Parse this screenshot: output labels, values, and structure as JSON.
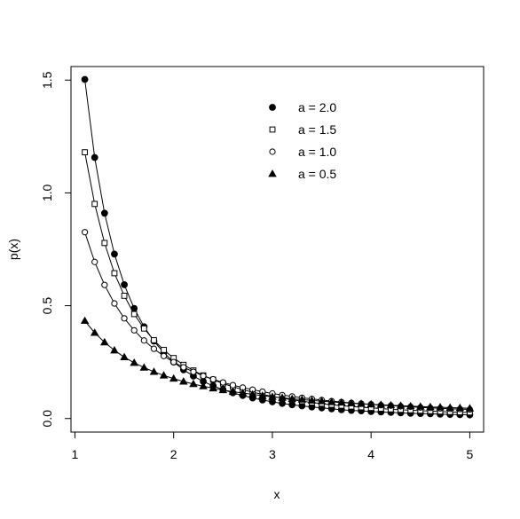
{
  "chart_data": {
    "type": "scatter",
    "xlabel": "x",
    "ylabel": "p(x)",
    "xlim": [
      0.96,
      5.14
    ],
    "ylim": [
      -0.06,
      1.56
    ],
    "x_ticks": [
      1,
      2,
      3,
      4,
      5
    ],
    "y_ticks": [
      0.0,
      0.5,
      1.0,
      1.5
    ],
    "x_tick_labels": [
      "1",
      "2",
      "3",
      "4",
      "5"
    ],
    "y_tick_labels": [
      "0.0",
      "0.5",
      "1.0",
      "1.5"
    ],
    "grid": false,
    "legend_position": "top-right",
    "x": [
      1.1,
      1.2,
      1.3,
      1.4,
      1.5,
      1.6,
      1.7,
      1.8,
      1.9,
      2.0,
      2.1,
      2.2,
      2.3,
      2.4,
      2.5,
      2.6,
      2.7,
      2.8,
      2.9,
      3.0,
      3.1,
      3.2,
      3.3,
      3.4,
      3.5,
      3.6,
      3.7,
      3.8,
      3.9,
      4.0,
      4.1,
      4.2,
      4.3,
      4.4,
      4.5,
      4.6,
      4.7,
      4.8,
      4.9,
      5.0
    ],
    "series": [
      {
        "name": "a = 2.0",
        "marker": "filled-circle",
        "values": [
          1.503,
          1.157,
          0.91,
          0.729,
          0.593,
          0.488,
          0.407,
          0.343,
          0.292,
          0.25,
          0.216,
          0.188,
          0.164,
          0.145,
          0.128,
          0.114,
          0.102,
          0.091,
          0.082,
          0.074,
          0.067,
          0.061,
          0.056,
          0.051,
          0.047,
          0.043,
          0.039,
          0.036,
          0.034,
          0.031,
          0.029,
          0.027,
          0.025,
          0.023,
          0.022,
          0.021,
          0.019,
          0.018,
          0.017,
          0.016
        ]
      },
      {
        "name": "a = 1.5",
        "marker": "open-square",
        "values": [
          1.18,
          0.951,
          0.778,
          0.644,
          0.544,
          0.463,
          0.399,
          0.347,
          0.304,
          0.268,
          0.238,
          0.213,
          0.191,
          0.172,
          0.155,
          0.141,
          0.128,
          0.117,
          0.107,
          0.098,
          0.09,
          0.083,
          0.077,
          0.071,
          0.066,
          0.061,
          0.057,
          0.053,
          0.05,
          0.047,
          0.044,
          0.041,
          0.039,
          0.037,
          0.035,
          0.033,
          0.031,
          0.029,
          0.028,
          0.027
        ]
      },
      {
        "name": "a = 1.0",
        "marker": "open-circle",
        "values": [
          0.826,
          0.694,
          0.592,
          0.51,
          0.444,
          0.391,
          0.346,
          0.309,
          0.277,
          0.25,
          0.227,
          0.207,
          0.189,
          0.174,
          0.16,
          0.148,
          0.137,
          0.128,
          0.119,
          0.111,
          0.104,
          0.098,
          0.092,
          0.087,
          0.082,
          0.077,
          0.073,
          0.069,
          0.066,
          0.063,
          0.059,
          0.057,
          0.054,
          0.052,
          0.049,
          0.047,
          0.045,
          0.043,
          0.042,
          0.04
        ]
      },
      {
        "name": "a = 0.5",
        "marker": "filled-triangle",
        "values": [
          0.433,
          0.38,
          0.338,
          0.302,
          0.272,
          0.247,
          0.226,
          0.207,
          0.191,
          0.177,
          0.164,
          0.153,
          0.143,
          0.134,
          0.126,
          0.119,
          0.113,
          0.107,
          0.101,
          0.096,
          0.092,
          0.087,
          0.084,
          0.08,
          0.077,
          0.073,
          0.071,
          0.068,
          0.065,
          0.063,
          0.061,
          0.059,
          0.057,
          0.055,
          0.053,
          0.051,
          0.05,
          0.048,
          0.047,
          0.045
        ]
      }
    ]
  }
}
